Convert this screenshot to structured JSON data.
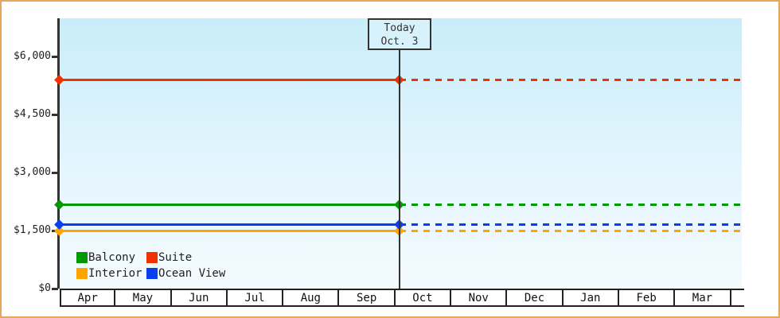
{
  "window": {
    "frame_border_color": "#e8a55c",
    "plot_bg_top": "#c8edfa",
    "plot_bg_bottom": "#f4fbff",
    "axis_color": "#333333"
  },
  "chart_data": {
    "type": "line",
    "title": "",
    "xlabel": "",
    "ylabel": "",
    "grid": false,
    "legend_position": "bottom-left",
    "x_categories": [
      "Apr",
      "May",
      "Jun",
      "Jul",
      "Aug",
      "Sep",
      "Oct",
      "Nov",
      "Dec",
      "Jan",
      "Feb",
      "Mar"
    ],
    "y_ticks": {
      "labels": [
        "$6,000",
        "$4,500",
        "$3,000",
        "$1,500",
        "$0"
      ],
      "values": [
        6000,
        4500,
        3000,
        1500,
        0
      ]
    },
    "ylim": [
      0,
      7000
    ],
    "series": [
      {
        "name": "Balcony",
        "color": "#009900",
        "value": 2175,
        "style": "solid-then-dashed"
      },
      {
        "name": "Suite",
        "color": "#ee3300",
        "value": 5400,
        "style": "solid-then-dashed"
      },
      {
        "name": "Interior",
        "color": "#ffa500",
        "value": 1500,
        "style": "solid-then-dashed"
      },
      {
        "name": "Ocean View",
        "color": "#0840f0",
        "value": 1650,
        "style": "solid-then-dashed"
      }
    ],
    "annotation": {
      "line1": "Today",
      "line2": "Oct. 3",
      "month": "Oct",
      "day": 3
    }
  }
}
